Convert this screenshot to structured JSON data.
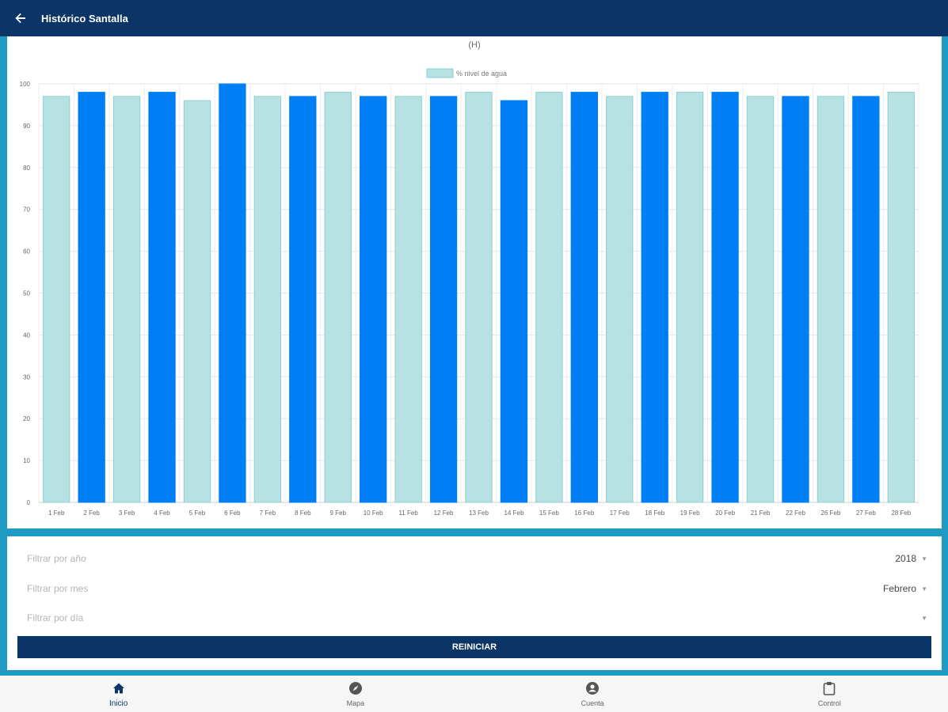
{
  "app": {
    "title": "Histórico Santalla"
  },
  "chart_data": {
    "type": "bar",
    "title": "(H)",
    "legend": "% nivel de agua",
    "legend_placement": "top-center",
    "categories": [
      "1 Feb",
      "2 Feb",
      "3 Feb",
      "4 Feb",
      "5 Feb",
      "6 Feb",
      "7 Feb",
      "8 Feb",
      "9 Feb",
      "10 Feb",
      "11 Feb",
      "12 Feb",
      "13 Feb",
      "14 Feb",
      "15 Feb",
      "16 Feb",
      "17 Feb",
      "18 Feb",
      "19 Feb",
      "20 Feb",
      "21 Feb",
      "22 Feb",
      "26 Feb",
      "27 Feb",
      "28 Feb"
    ],
    "values": [
      97,
      98,
      97,
      98,
      96,
      100,
      97,
      97,
      98,
      97,
      97,
      97,
      98,
      96,
      98,
      98,
      97,
      98,
      98,
      98,
      97,
      97,
      97,
      97,
      98
    ],
    "ylim": [
      0,
      100
    ],
    "yticks": [
      "0",
      "10",
      "20",
      "30",
      "40",
      "50",
      "60",
      "70",
      "80",
      "90",
      "100"
    ],
    "grid": true,
    "colors": {
      "light": "#b6e2e3",
      "light_stroke": "#8fcfd1",
      "dark": "#007ff5"
    }
  },
  "filters": {
    "year": {
      "label": "Filtrar por año",
      "value": "2018"
    },
    "month": {
      "label": "Filtrar por mes",
      "value": "Febrero"
    },
    "day": {
      "label": "Filtrar por día",
      "value": ""
    },
    "reset_label": "REINICIAR"
  },
  "nav": [
    {
      "label": "Inicio",
      "icon": "home-icon"
    },
    {
      "label": "Mapa",
      "icon": "compass-icon"
    },
    {
      "label": "Cuenta",
      "icon": "account-icon"
    },
    {
      "label": "Control",
      "icon": "clipboard-icon"
    }
  ],
  "colors": {
    "appbar": "#0b3566",
    "page": "#1e9ac3"
  }
}
